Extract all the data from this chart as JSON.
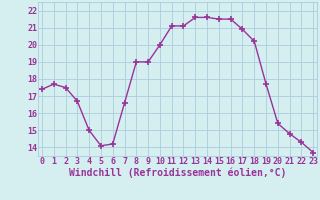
{
  "x": [
    0,
    1,
    2,
    3,
    4,
    5,
    6,
    7,
    8,
    9,
    10,
    11,
    12,
    13,
    14,
    15,
    16,
    17,
    18,
    19,
    20,
    21,
    22,
    23
  ],
  "y": [
    17.4,
    17.7,
    17.5,
    16.7,
    15.0,
    14.1,
    14.2,
    16.6,
    19.0,
    19.0,
    20.0,
    21.1,
    21.1,
    21.6,
    21.6,
    21.5,
    21.5,
    20.9,
    20.2,
    17.7,
    15.4,
    14.8,
    14.3,
    13.7
  ],
  "line_color": "#993399",
  "marker": "+",
  "markersize": 4,
  "linewidth": 1.0,
  "xlabel": "Windchill (Refroidissement éolien,°C)",
  "xlim_left": -0.3,
  "xlim_right": 23.3,
  "ylim_bottom": 13.5,
  "ylim_top": 22.5,
  "yticks": [
    14,
    15,
    16,
    17,
    18,
    19,
    20,
    21,
    22
  ],
  "xticks": [
    0,
    1,
    2,
    3,
    4,
    5,
    6,
    7,
    8,
    9,
    10,
    11,
    12,
    13,
    14,
    15,
    16,
    17,
    18,
    19,
    20,
    21,
    22,
    23
  ],
  "bg_color": "#d5eef0",
  "grid_color": "#aaccdd",
  "line_border_color": "#7a007a",
  "tick_color": "#993399",
  "xlabel_fontsize": 7,
  "tick_fontsize": 6,
  "bold_xlabel": true
}
